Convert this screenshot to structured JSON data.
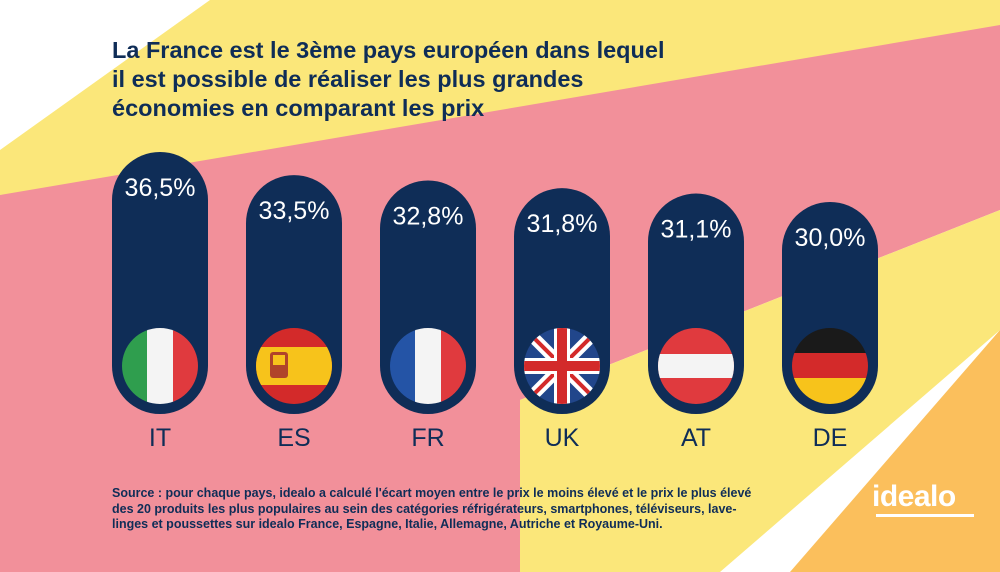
{
  "title": "La France est le 3ème pays européen dans lequel il est possible de réaliser les plus grandes économies en comparant les prix",
  "source": "Source :  pour chaque pays, idealo a calculé l'écart moyen entre le prix le moins élevé et le prix le plus élevé des 20 produits les plus populaires au sein des catégories réfrigérateurs, smartphones, téléviseurs, lave-linges et poussettes sur idealo France, Espagne, Italie, Allemagne, Autriche et Royaume-Uni.",
  "logo": "idealo",
  "colors": {
    "navy": "#0f2d57",
    "pink": "#f2909a",
    "yellow": "#fbe77a",
    "orange": "#fbbf5c"
  },
  "chart_data": {
    "type": "bar",
    "categories": [
      "IT",
      "ES",
      "FR",
      "UK",
      "AT",
      "DE"
    ],
    "value_labels": [
      "36,5%",
      "33,5%",
      "32,8%",
      "31,8%",
      "31,1%",
      "30,0%"
    ],
    "values": [
      36.5,
      33.5,
      32.8,
      31.8,
      31.1,
      30.0
    ],
    "flags": [
      "italy-flag",
      "spain-flag",
      "france-flag",
      "uk-flag",
      "austria-flag",
      "germany-flag"
    ],
    "title": "La France est le 3ème pays européen dans lequel il est possible de réaliser les plus grandes économies en comparant les prix",
    "xlabel": "",
    "ylabel": "",
    "grid": false
  }
}
